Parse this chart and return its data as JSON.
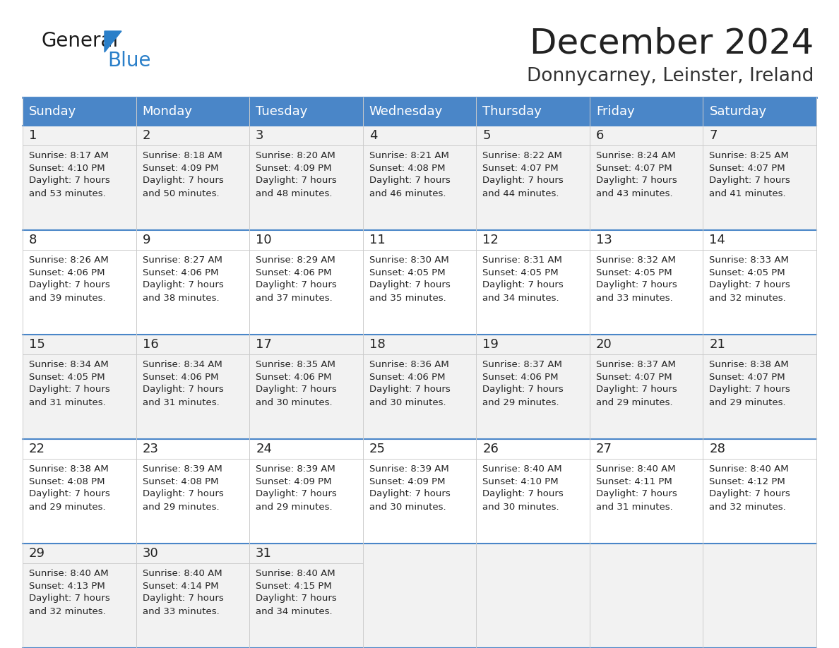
{
  "title": "December 2024",
  "subtitle": "Donnycarney, Leinster, Ireland",
  "days_of_week": [
    "Sunday",
    "Monday",
    "Tuesday",
    "Wednesday",
    "Thursday",
    "Friday",
    "Saturday"
  ],
  "header_bg": "#4a86c8",
  "header_text": "#ffffff",
  "row_bg": "#f2f2f2",
  "row_bg_alt": "#ffffff",
  "border_color": "#4a86c8",
  "cell_divider_color": "#cccccc",
  "title_color": "#222222",
  "subtitle_color": "#333333",
  "cell_text_color": "#222222",
  "logo_general_color": "#1a1a1a",
  "logo_blue_color": "#2a7fc9",
  "calendar_data": [
    [
      {
        "day": 1,
        "sunrise": "8:17 AM",
        "sunset": "4:10 PM",
        "daylight_h": "7 hours",
        "daylight_m": "53 minutes"
      },
      {
        "day": 2,
        "sunrise": "8:18 AM",
        "sunset": "4:09 PM",
        "daylight_h": "7 hours",
        "daylight_m": "50 minutes"
      },
      {
        "day": 3,
        "sunrise": "8:20 AM",
        "sunset": "4:09 PM",
        "daylight_h": "7 hours",
        "daylight_m": "48 minutes"
      },
      {
        "day": 4,
        "sunrise": "8:21 AM",
        "sunset": "4:08 PM",
        "daylight_h": "7 hours",
        "daylight_m": "46 minutes"
      },
      {
        "day": 5,
        "sunrise": "8:22 AM",
        "sunset": "4:07 PM",
        "daylight_h": "7 hours",
        "daylight_m": "44 minutes"
      },
      {
        "day": 6,
        "sunrise": "8:24 AM",
        "sunset": "4:07 PM",
        "daylight_h": "7 hours",
        "daylight_m": "43 minutes"
      },
      {
        "day": 7,
        "sunrise": "8:25 AM",
        "sunset": "4:07 PM",
        "daylight_h": "7 hours",
        "daylight_m": "41 minutes"
      }
    ],
    [
      {
        "day": 8,
        "sunrise": "8:26 AM",
        "sunset": "4:06 PM",
        "daylight_h": "7 hours",
        "daylight_m": "39 minutes"
      },
      {
        "day": 9,
        "sunrise": "8:27 AM",
        "sunset": "4:06 PM",
        "daylight_h": "7 hours",
        "daylight_m": "38 minutes"
      },
      {
        "day": 10,
        "sunrise": "8:29 AM",
        "sunset": "4:06 PM",
        "daylight_h": "7 hours",
        "daylight_m": "37 minutes"
      },
      {
        "day": 11,
        "sunrise": "8:30 AM",
        "sunset": "4:05 PM",
        "daylight_h": "7 hours",
        "daylight_m": "35 minutes"
      },
      {
        "day": 12,
        "sunrise": "8:31 AM",
        "sunset": "4:05 PM",
        "daylight_h": "7 hours",
        "daylight_m": "34 minutes"
      },
      {
        "day": 13,
        "sunrise": "8:32 AM",
        "sunset": "4:05 PM",
        "daylight_h": "7 hours",
        "daylight_m": "33 minutes"
      },
      {
        "day": 14,
        "sunrise": "8:33 AM",
        "sunset": "4:05 PM",
        "daylight_h": "7 hours",
        "daylight_m": "32 minutes"
      }
    ],
    [
      {
        "day": 15,
        "sunrise": "8:34 AM",
        "sunset": "4:05 PM",
        "daylight_h": "7 hours",
        "daylight_m": "31 minutes"
      },
      {
        "day": 16,
        "sunrise": "8:34 AM",
        "sunset": "4:06 PM",
        "daylight_h": "7 hours",
        "daylight_m": "31 minutes"
      },
      {
        "day": 17,
        "sunrise": "8:35 AM",
        "sunset": "4:06 PM",
        "daylight_h": "7 hours",
        "daylight_m": "30 minutes"
      },
      {
        "day": 18,
        "sunrise": "8:36 AM",
        "sunset": "4:06 PM",
        "daylight_h": "7 hours",
        "daylight_m": "30 minutes"
      },
      {
        "day": 19,
        "sunrise": "8:37 AM",
        "sunset": "4:06 PM",
        "daylight_h": "7 hours",
        "daylight_m": "29 minutes"
      },
      {
        "day": 20,
        "sunrise": "8:37 AM",
        "sunset": "4:07 PM",
        "daylight_h": "7 hours",
        "daylight_m": "29 minutes"
      },
      {
        "day": 21,
        "sunrise": "8:38 AM",
        "sunset": "4:07 PM",
        "daylight_h": "7 hours",
        "daylight_m": "29 minutes"
      }
    ],
    [
      {
        "day": 22,
        "sunrise": "8:38 AM",
        "sunset": "4:08 PM",
        "daylight_h": "7 hours",
        "daylight_m": "29 minutes"
      },
      {
        "day": 23,
        "sunrise": "8:39 AM",
        "sunset": "4:08 PM",
        "daylight_h": "7 hours",
        "daylight_m": "29 minutes"
      },
      {
        "day": 24,
        "sunrise": "8:39 AM",
        "sunset": "4:09 PM",
        "daylight_h": "7 hours",
        "daylight_m": "29 minutes"
      },
      {
        "day": 25,
        "sunrise": "8:39 AM",
        "sunset": "4:09 PM",
        "daylight_h": "7 hours",
        "daylight_m": "30 minutes"
      },
      {
        "day": 26,
        "sunrise": "8:40 AM",
        "sunset": "4:10 PM",
        "daylight_h": "7 hours",
        "daylight_m": "30 minutes"
      },
      {
        "day": 27,
        "sunrise": "8:40 AM",
        "sunset": "4:11 PM",
        "daylight_h": "7 hours",
        "daylight_m": "31 minutes"
      },
      {
        "day": 28,
        "sunrise": "8:40 AM",
        "sunset": "4:12 PM",
        "daylight_h": "7 hours",
        "daylight_m": "32 minutes"
      }
    ],
    [
      {
        "day": 29,
        "sunrise": "8:40 AM",
        "sunset": "4:13 PM",
        "daylight_h": "7 hours",
        "daylight_m": "32 minutes"
      },
      {
        "day": 30,
        "sunrise": "8:40 AM",
        "sunset": "4:14 PM",
        "daylight_h": "7 hours",
        "daylight_m": "33 minutes"
      },
      {
        "day": 31,
        "sunrise": "8:40 AM",
        "sunset": "4:15 PM",
        "daylight_h": "7 hours",
        "daylight_m": "34 minutes"
      },
      null,
      null,
      null,
      null
    ]
  ]
}
